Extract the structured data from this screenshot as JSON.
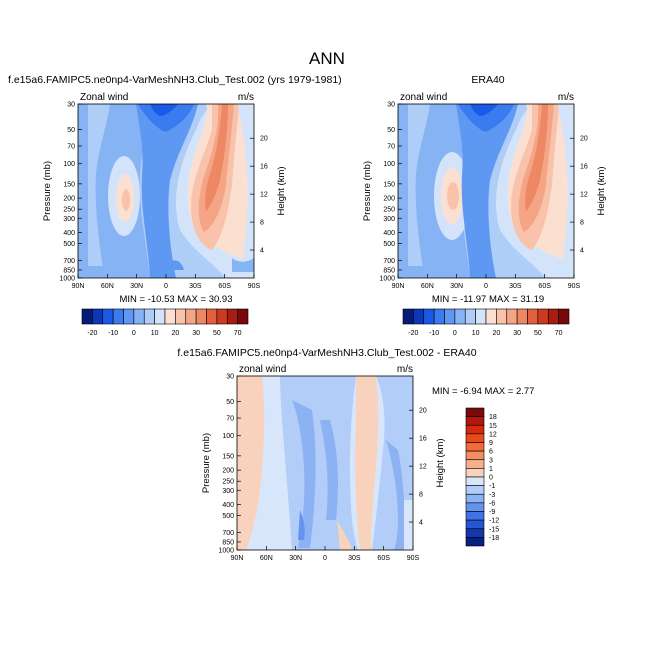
{
  "figure": {
    "title": "ANN"
  },
  "chart_data": [
    {
      "type": "heatmap",
      "title": "f.e15a6.FAMIPC5.ne0np4-VarMeshNH3.Club_Test.002 (yrs 1979-1981)",
      "variable_label": "Zonal wind",
      "units": "m/s",
      "ylabel": "Pressure (mb)",
      "y2label": "Height (km)",
      "x_ticks": [
        "90N",
        "60N",
        "30N",
        "0",
        "30S",
        "60S",
        "90S"
      ],
      "y_ticks": [
        30,
        50,
        70,
        100,
        150,
        200,
        250,
        300,
        400,
        500,
        700,
        850,
        1000
      ],
      "y2_ticks": [
        4,
        8,
        12,
        16,
        20
      ],
      "stats_text": "MIN = -10.53  MAX = 30.93",
      "stats": {
        "min": -10.53,
        "max": 30.93
      },
      "log_y": true
    },
    {
      "type": "heatmap",
      "title": "ERA40",
      "variable_label": "zonal wind",
      "units": "m/s",
      "ylabel": "Pressure (mb)",
      "y2label": "Height (km)",
      "x_ticks": [
        "90N",
        "60N",
        "30N",
        "0",
        "30S",
        "60S",
        "90S"
      ],
      "y_ticks": [
        30,
        50,
        70,
        100,
        150,
        200,
        250,
        300,
        400,
        500,
        700,
        850,
        1000
      ],
      "y2_ticks": [
        4,
        8,
        12,
        16,
        20
      ],
      "stats_text": "MIN = -11.97  MAX = 31.19",
      "stats": {
        "min": -11.97,
        "max": 31.19
      },
      "log_y": true
    },
    {
      "type": "heatmap",
      "title": "f.e15a6.FAMIPC5.ne0np4-VarMeshNH3.Club_Test.002 - ERA40",
      "variable_label": "zonal wind",
      "units": "m/s",
      "ylabel": "Pressure (mb)",
      "y2label": "Height (km)",
      "x_ticks": [
        "90N",
        "60N",
        "30N",
        "0",
        "30S",
        "60S",
        "90S"
      ],
      "y_ticks": [
        30,
        50,
        70,
        100,
        150,
        200,
        250,
        300,
        400,
        500,
        700,
        850,
        1000
      ],
      "y2_ticks": [
        4,
        8,
        12,
        16,
        20
      ],
      "stats_text": "MIN = -6.94  MAX =  2.77",
      "stats": {
        "min": -6.94,
        "max": 2.77
      },
      "log_y": true
    }
  ],
  "colorbar_top": {
    "labels": [
      "-20",
      "-10",
      "0",
      "10",
      "20",
      "30",
      "50",
      "70"
    ],
    "colors": [
      "#061a78",
      "#0d37b8",
      "#1a5ae6",
      "#3a7bf0",
      "#5f98f2",
      "#86b3f4",
      "#aecdf7",
      "#d3e4fa",
      "#fbe0d2",
      "#f8c3aa",
      "#f4a585",
      "#ee8763",
      "#e2613f",
      "#cc3a22",
      "#a81c12",
      "#78080a"
    ]
  },
  "colorbar_diff": {
    "labels": [
      "18",
      "15",
      "12",
      "9",
      "6",
      "3",
      "1",
      "0",
      "-1",
      "-3",
      "-6",
      "-9",
      "-12",
      "-15",
      "-18"
    ],
    "colors": [
      "#7a0a0a",
      "#b5150b",
      "#d42a10",
      "#e84a1c",
      "#f06a3a",
      "#f38d62",
      "#f6b08e",
      "#f9d2bd",
      "#d8e6fb",
      "#b2cdf7",
      "#8cb2f3",
      "#6394ef",
      "#3f74e8",
      "#2655d4",
      "#1338ad",
      "#07207e"
    ]
  }
}
